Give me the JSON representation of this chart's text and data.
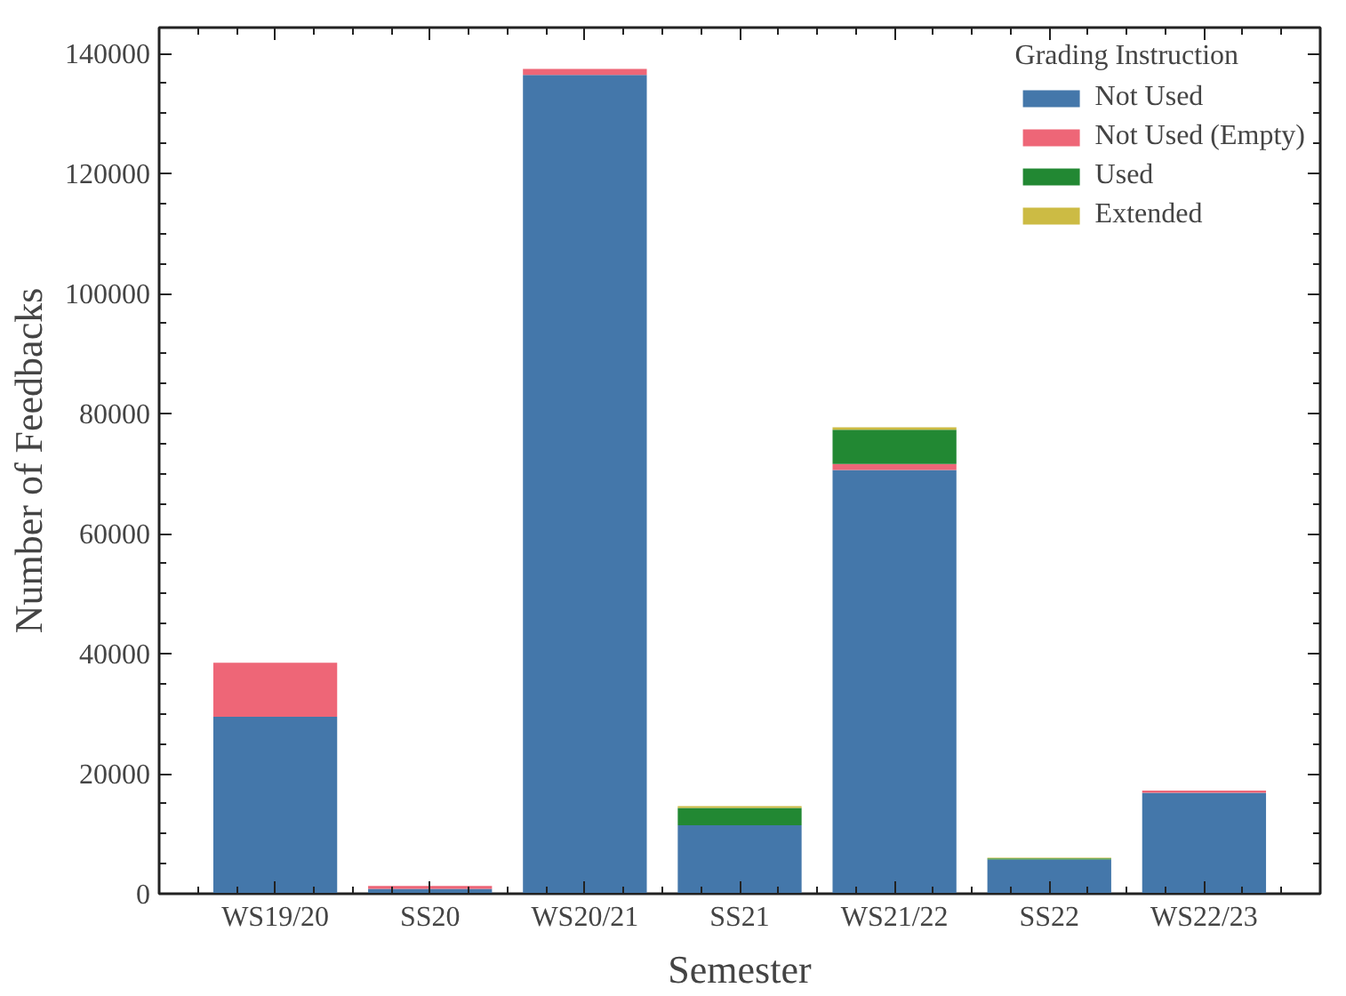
{
  "chart_data": {
    "type": "bar",
    "stacked": true,
    "xlabel": "Semester",
    "ylabel": "Number of Feedbacks",
    "legend_title": "Grading Instruction",
    "categories": [
      "WS19/20",
      "SS20",
      "WS20/21",
      "SS21",
      "WS21/22",
      "SS22",
      "WS22/23"
    ],
    "series": [
      {
        "name": "Not Used",
        "color": "#4477aa",
        "values": [
          29500,
          800,
          136400,
          11400,
          70600,
          5700,
          16800
        ]
      },
      {
        "name": "Not Used (Empty)",
        "color": "#ee6677",
        "values": [
          9000,
          500,
          1000,
          null,
          1000,
          null,
          400
        ]
      },
      {
        "name": "Used",
        "color": "#228833",
        "values": [
          null,
          null,
          null,
          2900,
          5700,
          200,
          null
        ]
      },
      {
        "name": "Extended",
        "color": "#ccbb44",
        "values": [
          null,
          null,
          null,
          300,
          400,
          100,
          null
        ]
      }
    ],
    "ylim": [
      0,
      144300
    ],
    "yticks": [
      0,
      20000,
      40000,
      60000,
      80000,
      100000,
      120000,
      140000
    ],
    "grid": false,
    "legend": "top right"
  }
}
